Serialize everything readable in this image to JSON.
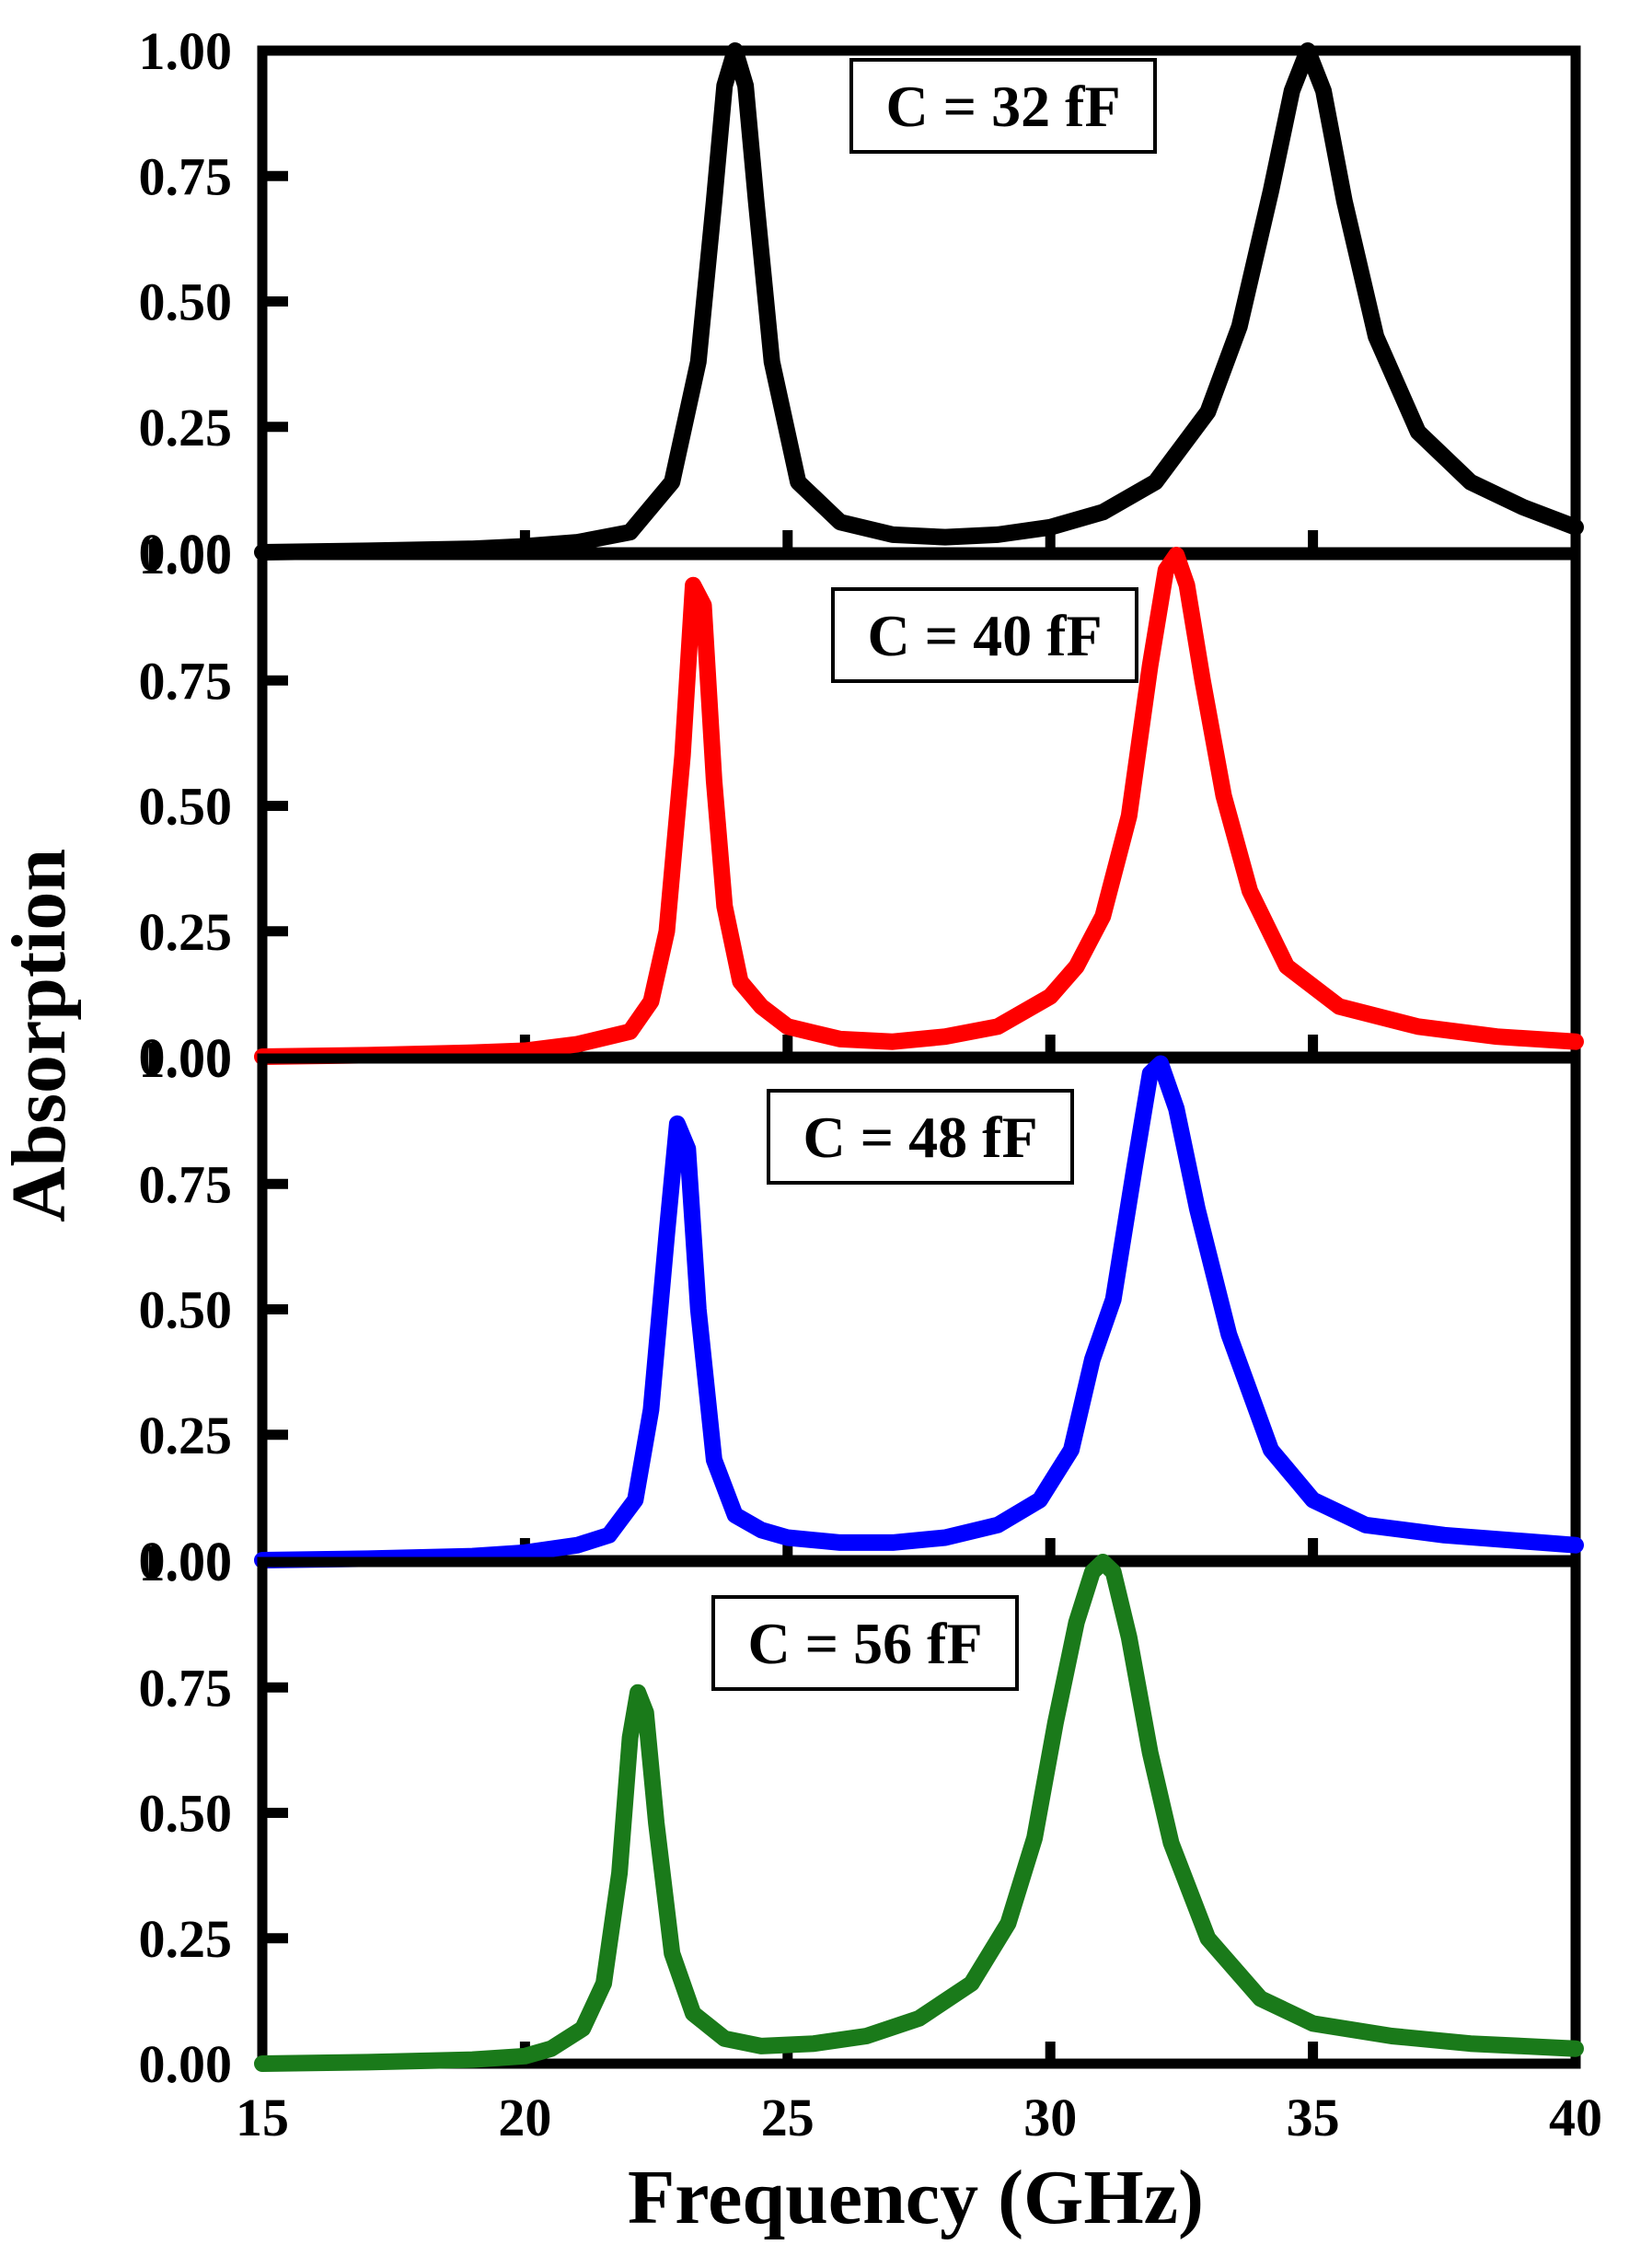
{
  "chart_data": {
    "type": "line",
    "layout": "4 vertically stacked panels sharing the x axis",
    "xlabel": "Frequency (GHz)",
    "ylabel": "Absorption",
    "xlim": [
      15,
      40
    ],
    "ylim": [
      0,
      1
    ],
    "xticks": [
      "15",
      "20",
      "25",
      "30",
      "35",
      "40"
    ],
    "yticks": [
      "0.00",
      "0.25",
      "0.50",
      "0.75",
      "1.00"
    ],
    "series": [
      {
        "name": "C = 32 fF",
        "color": "#000000",
        "x": [
          15,
          17,
          19,
          20,
          21,
          22,
          22.8,
          23.3,
          23.6,
          23.8,
          24.0,
          24.2,
          24.4,
          24.7,
          25.2,
          26,
          27,
          28,
          29,
          30,
          31,
          32,
          33,
          33.6,
          34.2,
          34.6,
          34.9,
          35.2,
          35.6,
          36.2,
          37,
          38,
          39,
          40
        ],
        "y": [
          0.0,
          0.003,
          0.007,
          0.012,
          0.02,
          0.04,
          0.14,
          0.38,
          0.7,
          0.93,
          1.0,
          0.93,
          0.7,
          0.38,
          0.14,
          0.06,
          0.035,
          0.03,
          0.035,
          0.05,
          0.08,
          0.14,
          0.28,
          0.45,
          0.72,
          0.92,
          1.0,
          0.92,
          0.7,
          0.43,
          0.24,
          0.14,
          0.09,
          0.05
        ]
      },
      {
        "name": "C = 40 fF",
        "color": "#ff0000",
        "x": [
          15,
          17,
          19,
          20,
          21,
          22,
          22.4,
          22.7,
          23.0,
          23.2,
          23.4,
          23.6,
          23.8,
          24.1,
          24.5,
          25,
          26,
          27,
          28,
          29,
          30,
          30.5,
          31,
          31.5,
          31.9,
          32.2,
          32.4,
          32.6,
          32.9,
          33.3,
          33.8,
          34.5,
          35.5,
          37,
          38.5,
          40
        ],
        "y": [
          0.0,
          0.003,
          0.008,
          0.012,
          0.025,
          0.05,
          0.11,
          0.25,
          0.6,
          0.94,
          0.9,
          0.55,
          0.3,
          0.15,
          0.1,
          0.06,
          0.035,
          0.03,
          0.04,
          0.06,
          0.12,
          0.18,
          0.28,
          0.48,
          0.78,
          0.97,
          1.0,
          0.94,
          0.75,
          0.52,
          0.33,
          0.18,
          0.1,
          0.06,
          0.04,
          0.03
        ]
      },
      {
        "name": "C = 48 fF",
        "color": "#0000ff",
        "x": [
          15,
          17,
          19,
          20,
          21,
          21.6,
          22.1,
          22.4,
          22.7,
          22.9,
          23.1,
          23.3,
          23.6,
          24.0,
          24.5,
          25,
          26,
          27,
          28,
          29,
          29.8,
          30.4,
          30.8,
          31.2,
          31.6,
          31.9,
          32.1,
          32.4,
          32.8,
          33.4,
          34.2,
          35,
          36,
          37.5,
          40
        ],
        "y": [
          0.0,
          0.003,
          0.008,
          0.015,
          0.03,
          0.05,
          0.12,
          0.3,
          0.65,
          0.87,
          0.82,
          0.5,
          0.2,
          0.09,
          0.06,
          0.045,
          0.035,
          0.035,
          0.045,
          0.07,
          0.12,
          0.22,
          0.4,
          0.52,
          0.78,
          0.97,
          0.99,
          0.9,
          0.7,
          0.45,
          0.22,
          0.12,
          0.07,
          0.05,
          0.03
        ]
      },
      {
        "name": "C = 56 fF",
        "color": "#1a7a1a",
        "x": [
          15,
          17,
          19,
          20,
          20.5,
          21.1,
          21.5,
          21.8,
          22.0,
          22.15,
          22.3,
          22.5,
          22.8,
          23.2,
          23.8,
          24.5,
          25.5,
          26.5,
          27.5,
          28.5,
          29.2,
          29.7,
          30.1,
          30.5,
          30.8,
          31.0,
          31.2,
          31.5,
          31.9,
          32.3,
          33,
          34,
          35,
          36.5,
          38,
          40
        ],
        "y": [
          0.0,
          0.003,
          0.008,
          0.015,
          0.03,
          0.07,
          0.16,
          0.38,
          0.65,
          0.74,
          0.7,
          0.48,
          0.22,
          0.1,
          0.05,
          0.035,
          0.04,
          0.055,
          0.09,
          0.16,
          0.28,
          0.45,
          0.68,
          0.88,
          0.98,
          1.0,
          0.98,
          0.85,
          0.62,
          0.44,
          0.25,
          0.13,
          0.08,
          0.055,
          0.04,
          0.03
        ]
      }
    ]
  }
}
